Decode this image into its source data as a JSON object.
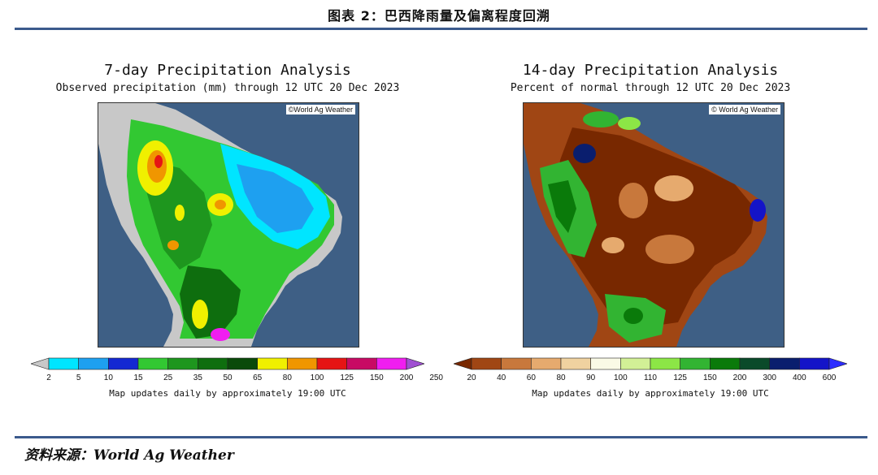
{
  "figure": {
    "title": "图表 2：巴西降雨量及偏离程度回溯",
    "source": "资料来源：World Ag Weather"
  },
  "left_map": {
    "title": "7-day Precipitation Analysis",
    "subtitle": "Observed precipitation (mm) through 12 UTC 20 Dec 2023",
    "copyright": "©World Ag Weather",
    "legend": {
      "labels": [
        "2",
        "5",
        "10",
        "15",
        "25",
        "35",
        "50",
        "65",
        "80",
        "100",
        "125",
        "150",
        "200",
        "250"
      ],
      "colors": [
        "#c8c8c8",
        "#00e5ff",
        "#1ea0f0",
        "#1428d2",
        "#32c832",
        "#1e961e",
        "#0e6e0e",
        "#0a4a0a",
        "#f0f000",
        "#f09600",
        "#e61414",
        "#c80a64",
        "#f01ef0",
        "#a050d2"
      ]
    },
    "update_note": "Map updates daily by approximately 19:00 UTC"
  },
  "right_map": {
    "title": "14-day Precipitation Analysis",
    "subtitle": "Percent of normal through 12 UTC 20 Dec 2023",
    "copyright": "© World Ag Weather",
    "legend": {
      "labels": [
        "20",
        "40",
        "60",
        "80",
        "90",
        "100",
        "110",
        "125",
        "150",
        "200",
        "300",
        "400",
        "600"
      ],
      "colors": [
        "#782800",
        "#a04614",
        "#c8783c",
        "#e6aa6e",
        "#f0d2a0",
        "#fafae6",
        "#d2f096",
        "#8ce646",
        "#32b432",
        "#0a7a0a",
        "#0a4a2a",
        "#0a1e6e",
        "#1414c8",
        "#2d2dff"
      ]
    },
    "update_note": "Map updates daily by approximately 19:00 UTC"
  }
}
